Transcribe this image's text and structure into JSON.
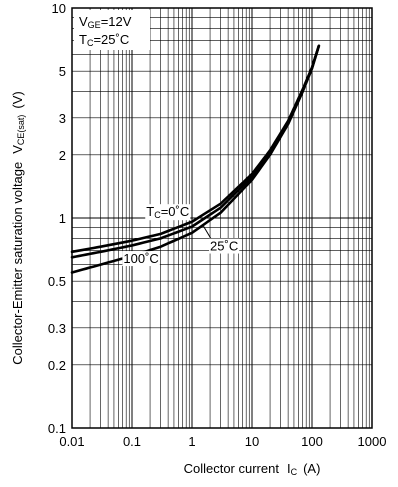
{
  "chart_data": {
    "type": "line",
    "x_scale": "log",
    "y_scale": "log",
    "xlim": [
      0.01,
      1000
    ],
    "ylim": [
      0.1,
      10
    ],
    "grid": true,
    "xlabel": {
      "main": "Collector current",
      "sym": "I",
      "sub": "C",
      "unit": "(A)"
    },
    "ylabel": {
      "main": "Collector-Emitter saturation voltage",
      "sym": "V",
      "sub": "CE(sat)",
      "unit": "(V)"
    },
    "x_ticks": [
      {
        "value": 0.01,
        "label": "0.01"
      },
      {
        "value": 0.1,
        "label": "0.1"
      },
      {
        "value": 1,
        "label": "1"
      },
      {
        "value": 10,
        "label": "10"
      },
      {
        "value": 100,
        "label": "100"
      },
      {
        "value": 1000,
        "label": "1000"
      }
    ],
    "y_ticks": [
      {
        "value": 0.1,
        "label": "0.1"
      },
      {
        "value": 0.2,
        "label": "0.2"
      },
      {
        "value": 0.3,
        "label": "0.3"
      },
      {
        "value": 0.5,
        "label": "0.5"
      },
      {
        "value": 1,
        "label": "1"
      },
      {
        "value": 2,
        "label": "2"
      },
      {
        "value": 3,
        "label": "3"
      },
      {
        "value": 5,
        "label": "5"
      },
      {
        "value": 10,
        "label": "10"
      }
    ],
    "conditions": [
      {
        "sym": "V",
        "sub": "GE",
        "rest": "=12V"
      },
      {
        "sym": "T",
        "sub": "C",
        "rest": "=25˚C"
      }
    ],
    "series": [
      {
        "name": "TC=0˚C",
        "x": [
          0.01,
          0.03,
          0.1,
          0.3,
          1,
          3,
          10,
          20,
          40,
          70,
          100,
          130
        ],
        "y": [
          0.69,
          0.73,
          0.78,
          0.84,
          0.96,
          1.17,
          1.62,
          2.1,
          2.9,
          4.1,
          5.2,
          6.6
        ]
      },
      {
        "name": "25˚C",
        "x": [
          0.01,
          0.03,
          0.1,
          0.3,
          1,
          3,
          10,
          20,
          40,
          70,
          100,
          130
        ],
        "y": [
          0.65,
          0.69,
          0.74,
          0.8,
          0.91,
          1.12,
          1.57,
          2.05,
          2.85,
          4.05,
          5.2,
          6.6
        ]
      },
      {
        "name": "100˚C",
        "x": [
          0.01,
          0.03,
          0.1,
          0.3,
          1,
          3,
          10,
          20,
          40,
          70,
          100,
          130
        ],
        "y": [
          0.55,
          0.6,
          0.66,
          0.73,
          0.85,
          1.06,
          1.52,
          2.0,
          2.8,
          4.0,
          5.15,
          6.6
        ]
      }
    ],
    "curve_labels": [
      {
        "series": 0,
        "sym": "T",
        "sub": "C",
        "rest": "=0˚C",
        "at_x": 0.9,
        "at_y": 1.02
      },
      {
        "series": 1,
        "text": "25˚C",
        "at_x": 2.0,
        "at_y": 0.7
      },
      {
        "series": 2,
        "text": "100˚C",
        "at_x": 0.28,
        "at_y": 0.61
      }
    ]
  }
}
